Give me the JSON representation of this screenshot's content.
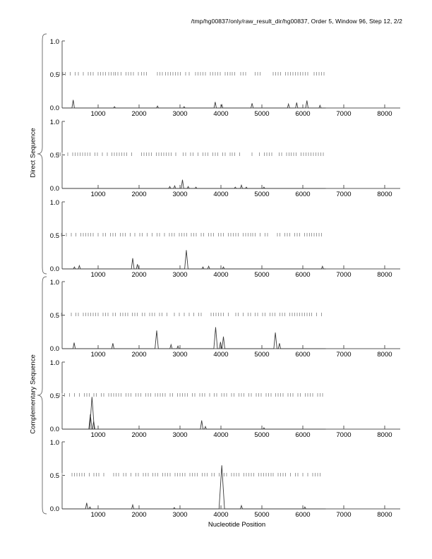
{
  "title": "/tmp/hg00837/only/raw_result_dir/hg00837, Order 5, Window 96, Step 12, 2/2",
  "xlabel": "Nucleotide Position",
  "groups": {
    "direct_label": "Direct Sequence",
    "complementary_label": "Complementary Sequence"
  },
  "colors": {
    "axis": "#555555",
    "signal": "#3a3a3a",
    "rug": "#999999",
    "brace": "#666666",
    "text": "#000000"
  },
  "chart_data": {
    "type": "line",
    "title": "/tmp/hg00837/only/raw_result_dir/hg00837, Order 5, Window 96, Step 12, 2/2",
    "xlabel": "Nucleotide Position",
    "ylabel_groups": [
      "Direct Sequence",
      "Complementary Sequence"
    ],
    "xlim": [
      120,
      8380
    ],
    "ylim": [
      0.0,
      1.0
    ],
    "x_ticks": [
      1000,
      2000,
      3000,
      4000,
      5000,
      6000,
      7000,
      8000
    ],
    "y_tick_labels": [
      "0.0",
      "0.5",
      "1.0"
    ],
    "y_ticks": [
      0.0,
      0.5,
      1.0
    ],
    "rug_level": 0.5,
    "sequence_end": 6560,
    "grid": false,
    "legend": "none",
    "subplots": [
      {
        "group": "Direct Sequence",
        "peaks": [
          [
            390,
            0.12
          ],
          [
            1400,
            0.02
          ],
          [
            2450,
            0.03
          ],
          [
            3100,
            0.02
          ],
          [
            3860,
            0.09
          ],
          [
            4020,
            0.05
          ],
          [
            4760,
            0.07
          ],
          [
            5650,
            0.06
          ],
          [
            5850,
            0.08
          ],
          [
            6100,
            0.11
          ],
          [
            6420,
            0.04
          ]
        ],
        "rug": [
          60,
          140,
          200,
          320,
          440,
          520,
          640,
          760,
          820,
          880,
          1000,
          1060,
          1120,
          1180,
          1260,
          1320,
          1380,
          1420,
          1480,
          1560,
          1680,
          1740,
          1800,
          1860,
          1980,
          2060,
          2120,
          2180,
          2450,
          2510,
          2570,
          2650,
          2710,
          2770,
          2830,
          2890,
          2950,
          3010,
          3140,
          3220,
          3380,
          3440,
          3500,
          3560,
          3620,
          3740,
          3800,
          3860,
          3920,
          3980,
          4100,
          4160,
          4220,
          4280,
          4340,
          4480,
          4540,
          4600,
          4840,
          4900,
          4960,
          5280,
          5340,
          5400,
          5460,
          5580,
          5640,
          5700,
          5760,
          5820,
          5880,
          5940,
          6000,
          6060,
          6120,
          6280,
          6340,
          6400,
          6460,
          6520
        ]
      },
      {
        "group": "Direct Sequence",
        "peaks": [
          [
            2750,
            0.03
          ],
          [
            2870,
            0.04
          ],
          [
            3060,
            0.13
          ],
          [
            3200,
            0.03
          ],
          [
            3390,
            0.02
          ],
          [
            4350,
            0.02
          ],
          [
            4500,
            0.05
          ],
          [
            4620,
            0.02
          ],
          [
            5050,
            0.02
          ]
        ],
        "rug": [
          40,
          80,
          120,
          260,
          380,
          440,
          500,
          560,
          620,
          680,
          740,
          800,
          920,
          980,
          1100,
          1220,
          1340,
          1400,
          1460,
          1520,
          1580,
          1640,
          1700,
          1820,
          2060,
          2120,
          2180,
          2240,
          2300,
          2420,
          2480,
          2540,
          2600,
          2660,
          2720,
          2780,
          2900,
          3080,
          3140,
          3260,
          3320,
          3440,
          3560,
          3620,
          3680,
          3800,
          3860,
          3920,
          4040,
          4100,
          4220,
          4280,
          4340,
          4460,
          4760,
          4940,
          5060,
          5120,
          5180,
          5240,
          5420,
          5480,
          5600,
          5660,
          5720,
          5780,
          5840,
          5960,
          6020,
          6080,
          6140,
          6200,
          6260,
          6320,
          6380,
          6440,
          6500
        ]
      },
      {
        "group": "Direct Sequence",
        "peaks": [
          [
            420,
            0.03
          ],
          [
            540,
            0.05
          ],
          [
            1845,
            0.16
          ],
          [
            1960,
            0.07
          ],
          [
            3155,
            0.28
          ],
          [
            3560,
            0.03
          ],
          [
            3700,
            0.04
          ],
          [
            4060,
            0.03
          ],
          [
            6480,
            0.04
          ]
        ],
        "rug": [
          100,
          220,
          340,
          460,
          580,
          640,
          700,
          760,
          820,
          880,
          1000,
          1120,
          1180,
          1300,
          1360,
          1420,
          1540,
          1600,
          1660,
          1780,
          1900,
          2020,
          2080,
          2200,
          2320,
          2440,
          2500,
          2620,
          2740,
          2800,
          2860,
          2980,
          3040,
          3100,
          3160,
          3280,
          3340,
          3400,
          3520,
          3580,
          3700,
          3760,
          3820,
          3940,
          4000,
          4060,
          4180,
          4240,
          4300,
          4360,
          4420,
          4540,
          4600,
          4660,
          4720,
          4780,
          4840,
          4960,
          5080,
          5140,
          5380,
          5440,
          5560,
          5620,
          5680,
          5800,
          5860,
          5920,
          6040,
          6100,
          6160,
          6220,
          6280,
          6340,
          6400,
          6460
        ]
      },
      {
        "group": "Complementary Sequence",
        "peaks": [
          [
            414,
            0.09
          ],
          [
            1360,
            0.08
          ],
          [
            2430,
            0.27
          ],
          [
            2780,
            0.06
          ],
          [
            2950,
            0.04
          ],
          [
            3870,
            0.32
          ],
          [
            3990,
            0.1
          ],
          [
            4060,
            0.18
          ],
          [
            5330,
            0.24
          ],
          [
            5430,
            0.08
          ]
        ],
        "rug": [
          100,
          340,
          460,
          520,
          640,
          700,
          760,
          820,
          880,
          940,
          1000,
          1120,
          1180,
          1240,
          1360,
          1420,
          1540,
          1600,
          1660,
          1720,
          1840,
          1900,
          1960,
          2080,
          2140,
          2260,
          2320,
          2380,
          2500,
          2560,
          2680,
          2860,
          2980,
          3100,
          3220,
          3340,
          3460,
          3520,
          3760,
          3820,
          3880,
          3940,
          4000,
          4060,
          4180,
          4360,
          4420,
          4540,
          4660,
          4720,
          4840,
          4900,
          5020,
          5080,
          5200,
          5260,
          5320,
          5440,
          5500,
          5560,
          5680,
          5740,
          5800,
          5860,
          5920,
          5980,
          6040,
          6100,
          6160,
          6220,
          6340,
          6460
        ]
      },
      {
        "group": "Complementary Sequence",
        "peaks": [
          [
            810,
            0.22
          ],
          [
            850,
            0.48
          ],
          [
            890,
            0.12
          ],
          [
            3530,
            0.13
          ],
          [
            3620,
            0.04
          ],
          [
            5050,
            0.02
          ]
        ],
        "rug": [
          60,
          120,
          180,
          300,
          420,
          540,
          660,
          720,
          780,
          900,
          960,
          1080,
          1140,
          1260,
          1320,
          1380,
          1440,
          1500,
          1560,
          1680,
          1740,
          1800,
          1920,
          1980,
          2040,
          2160,
          2220,
          2280,
          2400,
          2460,
          2520,
          2580,
          2640,
          2760,
          2820,
          2940,
          3000,
          3060,
          3120,
          3180,
          3300,
          3360,
          3480,
          3540,
          3600,
          3720,
          3840,
          3900,
          4020,
          4080,
          4140,
          4260,
          4320,
          4440,
          4500,
          4560,
          4680,
          4740,
          4860,
          4920,
          4980,
          5100,
          5160,
          5220,
          5340,
          5400,
          5460,
          5520,
          5640,
          5700,
          5760,
          5880,
          5940,
          6060,
          6120,
          6180,
          6240,
          6360,
          6420,
          6480
        ]
      },
      {
        "group": "Complementary Sequence",
        "peaks": [
          [
            720,
            0.09
          ],
          [
            800,
            0.03
          ],
          [
            1845,
            0.06
          ],
          [
            2860,
            0.02
          ],
          [
            4020,
            0.65
          ],
          [
            4500,
            0.05
          ],
          [
            6050,
            0.03
          ]
        ],
        "rug": [
          120,
          360,
          420,
          480,
          540,
          600,
          660,
          780,
          900,
          960,
          1020,
          1140,
          1380,
          1440,
          1500,
          1620,
          1680,
          1800,
          1920,
          1980,
          2100,
          2160,
          2220,
          2340,
          2400,
          2460,
          2580,
          2640,
          2700,
          2760,
          2880,
          2940,
          3000,
          3060,
          3120,
          3240,
          3300,
          3360,
          3420,
          3540,
          3600,
          3660,
          3780,
          3840,
          3960,
          4080,
          4140,
          4260,
          4320,
          4380,
          4440,
          4560,
          4620,
          4680,
          4740,
          4800,
          4920,
          4980,
          5040,
          5100,
          5160,
          5220,
          5280,
          5400,
          5460,
          5520,
          5580,
          5700,
          5820,
          5880,
          6000,
          6120,
          6240,
          6300,
          6360,
          6420
        ]
      }
    ]
  }
}
